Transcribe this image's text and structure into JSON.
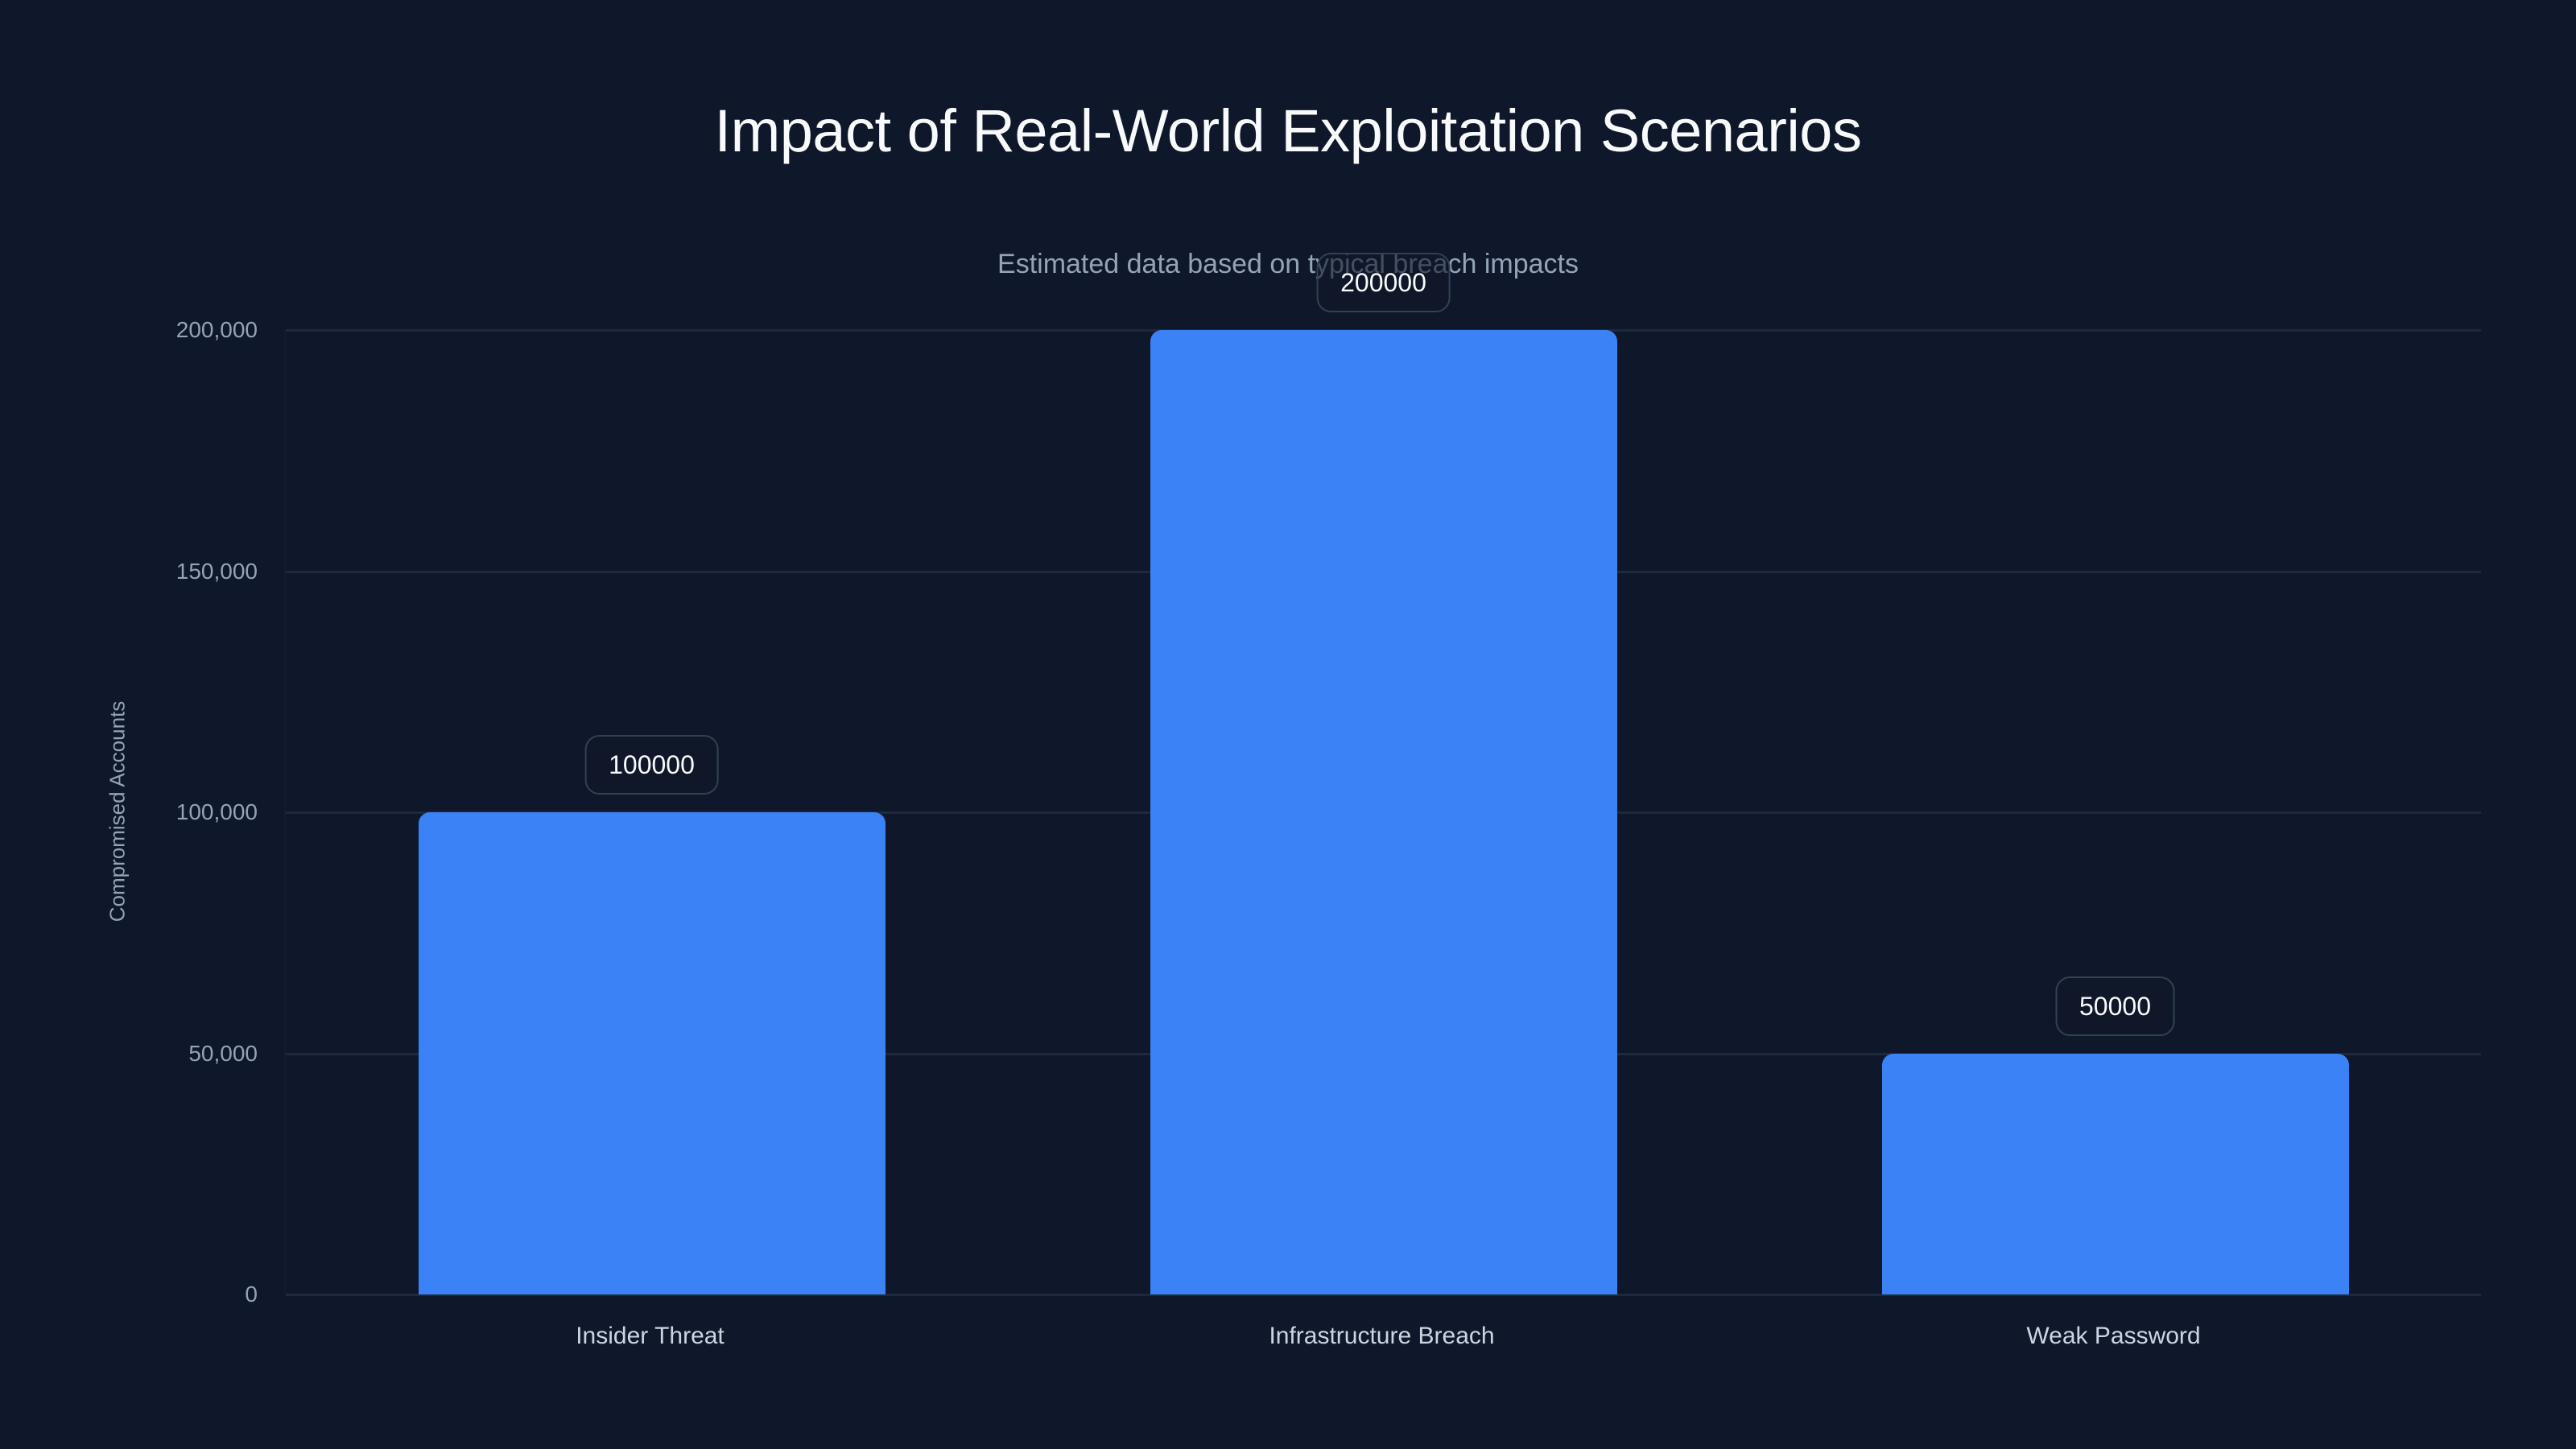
{
  "chart": {
    "title": "Impact of Real-World Exploitation Scenarios",
    "subtitle": "Estimated data based on typical breach impacts",
    "ylabel": "Compromised Accounts",
    "colors": {
      "background": "#0f172a",
      "bar": "#3b82f6",
      "grid": "#1e293b",
      "tick_text": "#94a3b8"
    }
  },
  "chart_data": {
    "type": "bar",
    "title": "Impact of Real-World Exploitation Scenarios",
    "subtitle": "Estimated data based on typical breach impacts",
    "xlabel": "",
    "ylabel": "Compromised Accounts",
    "categories": [
      "Insider Threat",
      "Infrastructure Breach",
      "Weak Password"
    ],
    "values": [
      100000,
      200000,
      50000
    ],
    "data_labels": [
      "100000",
      "200000",
      "50000"
    ],
    "ylim": [
      0,
      200000
    ],
    "yticks": [
      0,
      50000,
      100000,
      150000,
      200000
    ],
    "ytick_labels": [
      "0",
      "50,000",
      "100,000",
      "150,000",
      "200,000"
    ],
    "grid": true,
    "legend": null
  }
}
